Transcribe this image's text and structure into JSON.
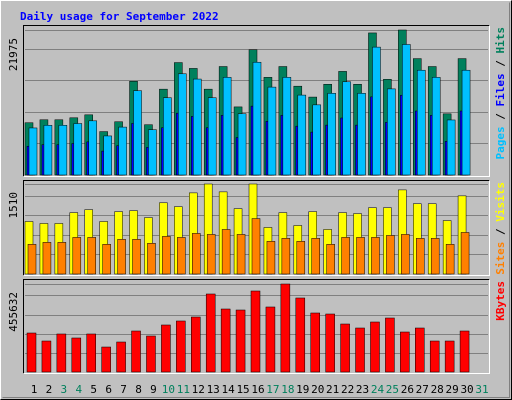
{
  "chart_data": [
    {
      "type": "bar",
      "title": "Daily usage for September 2022",
      "legend_separator": " / ",
      "ylim": [
        0,
        21975
      ],
      "yticks": [
        21975
      ],
      "series": [
        {
          "name": "Hits",
          "color": "#00805c",
          "values": [
            7920,
            8370,
            8370,
            8670,
            9120,
            6580,
            8070,
            14200,
            7620,
            13010,
            17040,
            16150,
            13010,
            16440,
            10320,
            18990,
            14800,
            16440,
            13460,
            11810,
            13750,
            15700,
            13750,
            21530,
            14500,
            21975,
            17640,
            16440,
            9270,
            17640,
            null
          ]
        },
        {
          "name": "Files",
          "color": "#0000ff",
          "values": [
            4360,
            4600,
            4600,
            4770,
            5020,
            3620,
            4440,
            7810,
            4190,
            7160,
            9370,
            8880,
            7160,
            9040,
            5680,
            10440,
            8140,
            9040,
            7400,
            6500,
            7560,
            8640,
            7560,
            11840,
            7980,
            12090,
            9700,
            9040,
            5100,
            9700,
            null
          ]
        },
        {
          "name": "Pages",
          "color": "#00c0ff",
          "values": [
            7130,
            7530,
            7530,
            7800,
            8210,
            5920,
            7260,
            12780,
            6860,
            11710,
            15340,
            14540,
            11710,
            14800,
            9290,
            17090,
            13320,
            14800,
            12110,
            10630,
            12380,
            14130,
            12380,
            19380,
            13050,
            19780,
            15880,
            14800,
            8340,
            15880,
            null
          ]
        }
      ]
    },
    {
      "type": "bar",
      "ylim": [
        0,
        1510
      ],
      "yticks": [
        1510
      ],
      "series": [
        {
          "name": "Visits",
          "color": "#ffff00",
          "values": [
            880,
            847,
            847,
            1029,
            1079,
            880,
            1046,
            1062,
            946,
            1195,
            1129,
            1361,
            1510,
            1378,
            1096,
            1510,
            780,
            1029,
            813,
            1046,
            747,
            1029,
            1013,
            1112,
            1112,
            1411,
            1179,
            1179,
            896,
            1311,
            null
          ]
        },
        {
          "name": "Sites",
          "color": "#ff8000",
          "values": [
            498,
            531,
            531,
            614,
            614,
            498,
            581,
            581,
            515,
            631,
            614,
            681,
            664,
            747,
            664,
            930,
            548,
            598,
            548,
            598,
            498,
            614,
            614,
            614,
            647,
            664,
            598,
            598,
            498,
            697,
            null
          ]
        }
      ]
    },
    {
      "type": "bar",
      "ylim": [
        0,
        455632
      ],
      "yticks": [
        455632
      ],
      "categories": [
        "1",
        "2",
        "3",
        "4",
        "5",
        "6",
        "7",
        "8",
        "9",
        "10",
        "11",
        "12",
        "13",
        "14",
        "15",
        "16",
        "17",
        "18",
        "19",
        "20",
        "21",
        "22",
        "23",
        "24",
        "25",
        "26",
        "27",
        "28",
        "29",
        "30",
        "31"
      ],
      "category_colors": [
        "#000000",
        "#000000",
        "#00805c",
        "#00805c",
        "#000000",
        "#000000",
        "#000000",
        "#000000",
        "#000000",
        "#00805c",
        "#00805c",
        "#000000",
        "#000000",
        "#000000",
        "#000000",
        "#000000",
        "#00805c",
        "#00805c",
        "#000000",
        "#000000",
        "#000000",
        "#000000",
        "#000000",
        "#00805c",
        "#00805c",
        "#000000",
        "#000000",
        "#000000",
        "#000000",
        "#000000",
        "#00805c"
      ],
      "series": [
        {
          "name": "KBytes",
          "color": "#ff0000",
          "values": [
            201900,
            160500,
            196800,
            176100,
            196800,
            129400,
            155300,
            212300,
            186400,
            243400,
            264100,
            284800,
            403900,
            326200,
            321000,
            419400,
            336600,
            455632,
            383200,
            305500,
            300300,
            248500,
            227800,
            258900,
            279600,
            207100,
            227800,
            160500,
            160500,
            212300,
            null
          ]
        }
      ]
    }
  ]
}
